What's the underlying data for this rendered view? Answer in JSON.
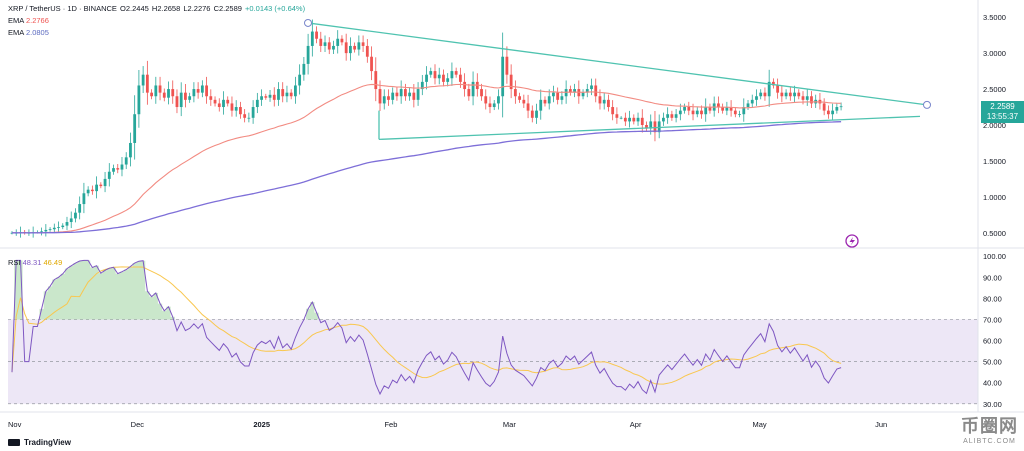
{
  "header": {
    "symbol": "XRP / TetherUS · 1D · BINANCE",
    "open": "O2.2445",
    "high": "H2.2658",
    "low": "L2.2276",
    "close": "C2.2589",
    "change": "+0.0143 (+0.64%)",
    "ema1_label": "EMA",
    "ema1_value": "2.2766",
    "ema2_label": "EMA",
    "ema2_value": "2.0805",
    "rsi_label": "RSI",
    "rsi_value": "48.31",
    "rsi_ma_value": "46.49"
  },
  "price_tag": {
    "price": "2.2589",
    "countdown": "13:55:37"
  },
  "branding": {
    "tradingview": "TradingView",
    "watermark": "币圈网",
    "watermark_url": "ALIBTC.COM"
  },
  "colors": {
    "up": "#26a69a",
    "down": "#ef5350",
    "ema_fast": "#f28b82",
    "ema_slow": "#7e6fd8",
    "trendline": "#4fc3b0",
    "rsi": "#7e57c2",
    "rsi_ma": "#f9c74f",
    "rsi_band": "#ede7f6"
  },
  "chart_data": [
    {
      "type": "candlestick",
      "title": "XRP / TetherUS · 1D · BINANCE",
      "x_ticks": [
        "Nov",
        "Dec",
        "2025",
        "Feb",
        "Mar",
        "Apr",
        "May",
        "Jun"
      ],
      "y_ticks": [
        "0.5000",
        "1.0000",
        "1.5000",
        "2.0000",
        "2.5000",
        "3.0000",
        "3.5000"
      ],
      "ylim": [
        0.4,
        3.6
      ],
      "last_price": 2.2589,
      "series": [
        {
          "name": "EMA",
          "value": 2.2766
        },
        {
          "name": "EMA",
          "value": 2.0805
        }
      ],
      "closes": [
        0.5,
        0.5,
        0.51,
        0.5,
        0.5,
        0.51,
        0.51,
        0.52,
        0.54,
        0.55,
        0.57,
        0.58,
        0.6,
        0.65,
        0.7,
        0.78,
        0.9,
        1.05,
        1.1,
        1.08,
        1.17,
        1.15,
        1.25,
        1.35,
        1.4,
        1.38,
        1.45,
        1.55,
        1.75,
        2.15,
        2.55,
        2.7,
        2.45,
        2.4,
        2.55,
        2.45,
        2.38,
        2.5,
        2.4,
        2.25,
        2.45,
        2.35,
        2.4,
        2.5,
        2.45,
        2.55,
        2.4,
        2.35,
        2.3,
        2.25,
        2.35,
        2.3,
        2.2,
        2.25,
        2.15,
        2.1,
        2.1,
        2.25,
        2.35,
        2.4,
        2.38,
        2.42,
        2.35,
        2.5,
        2.4,
        2.45,
        2.4,
        2.55,
        2.7,
        2.85,
        3.1,
        3.3,
        3.2,
        3.1,
        3.15,
        3.05,
        3.1,
        3.2,
        3.15,
        3.0,
        3.1,
        3.05,
        3.15,
        3.1,
        2.95,
        2.75,
        2.5,
        2.3,
        2.4,
        2.35,
        2.45,
        2.4,
        2.5,
        2.4,
        2.45,
        2.35,
        2.5,
        2.6,
        2.7,
        2.75,
        2.65,
        2.7,
        2.6,
        2.65,
        2.75,
        2.7,
        2.6,
        2.5,
        2.4,
        2.6,
        2.5,
        2.4,
        2.3,
        2.25,
        2.3,
        2.4,
        2.95,
        2.7,
        2.5,
        2.4,
        2.35,
        2.3,
        2.2,
        2.1,
        2.2,
        2.35,
        2.3,
        2.4,
        2.45,
        2.35,
        2.4,
        2.5,
        2.45,
        2.5,
        2.4,
        2.45,
        2.5,
        2.55,
        2.4,
        2.3,
        2.35,
        2.25,
        2.15,
        2.1,
        2.1,
        2.05,
        2.1,
        2.05,
        2.1,
        2.0,
        1.95,
        2.05,
        1.9,
        2.05,
        2.1,
        2.15,
        2.1,
        2.15,
        2.2,
        2.25,
        2.2,
        2.15,
        2.2,
        2.15,
        2.25,
        2.2,
        2.3,
        2.25,
        2.2,
        2.25,
        2.2,
        2.15,
        2.15,
        2.25,
        2.3,
        2.35,
        2.4,
        2.45,
        2.4,
        2.6,
        2.55,
        2.45,
        2.4,
        2.45,
        2.4,
        2.45,
        2.4,
        2.35,
        2.4,
        2.3,
        2.35,
        2.3,
        2.2,
        2.15,
        2.2,
        2.25,
        2.26
      ]
    },
    {
      "type": "line",
      "title": "RSI",
      "y_ticks": [
        "30.00",
        "40.00",
        "50.00",
        "60.00",
        "70.00",
        "80.00",
        "90.00",
        "100.00"
      ],
      "ylim": [
        28,
        102
      ],
      "band": [
        30,
        70
      ],
      "midline": 50,
      "series": [
        {
          "name": "RSI",
          "value": 48.31
        },
        {
          "name": "RSI MA",
          "value": 46.49
        }
      ]
    }
  ]
}
